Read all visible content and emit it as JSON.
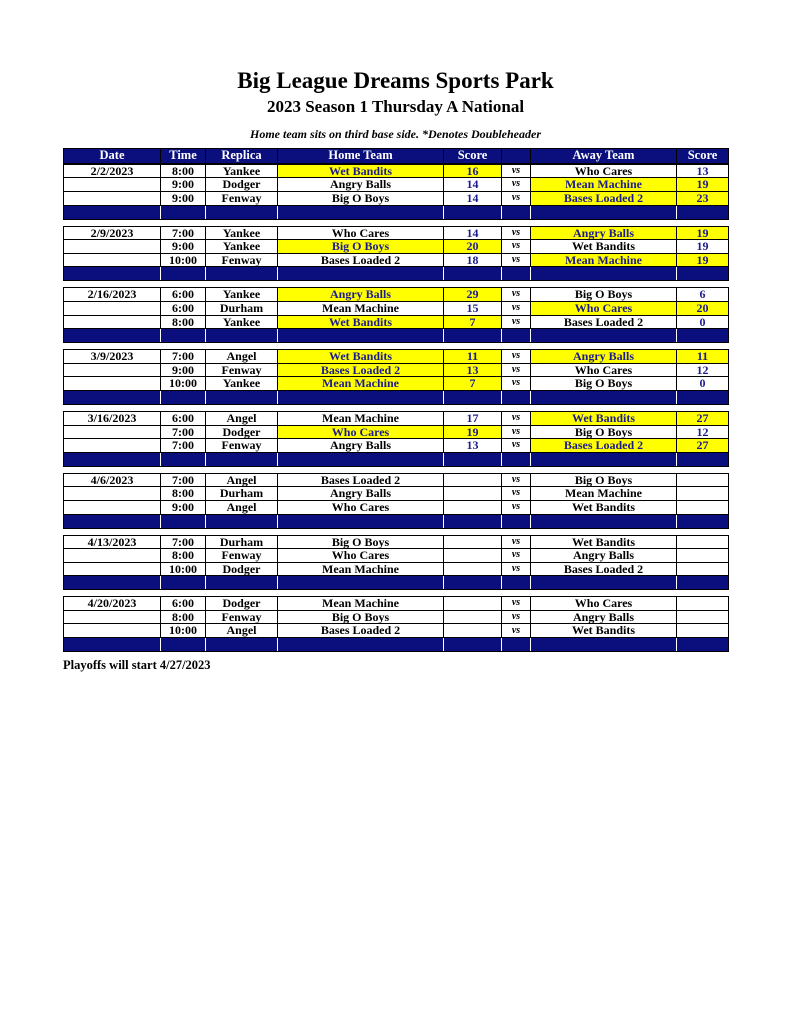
{
  "page": {
    "title": "Big League Dreams Sports Park",
    "subtitle": "2023 Season 1 Thursday A National",
    "note": "Home team sits on third base side.  *Denotes Doubleheader",
    "footer": "Playoffs will start 4/27/2023"
  },
  "colors": {
    "navy": "#0a0f7d",
    "yellow": "#ffff00",
    "score_text": "#1b1b8f",
    "header_text": "#ffffff"
  },
  "table": {
    "headers": [
      "Date",
      "Time",
      "Replica",
      "Home Team",
      "Score",
      "",
      "Away Team",
      "Score"
    ],
    "vs_label": "vs",
    "blocks": [
      {
        "date": "2/2/2023",
        "games": [
          {
            "time": "8:00",
            "replica": "Yankee",
            "home": "Wet Bandits",
            "home_score": "16",
            "away": "Who Cares",
            "away_score": "13",
            "home_hl": true,
            "away_hl": false
          },
          {
            "time": "9:00",
            "replica": "Dodger",
            "home": "Angry Balls",
            "home_score": "14",
            "away": "Mean Machine",
            "away_score": "19",
            "home_hl": false,
            "away_hl": true
          },
          {
            "time": "9:00",
            "replica": "Fenway",
            "home": "Big O Boys",
            "home_score": "14",
            "away": "Bases Loaded 2",
            "away_score": "23",
            "home_hl": false,
            "away_hl": true
          }
        ]
      },
      {
        "date": "2/9/2023",
        "games": [
          {
            "time": "7:00",
            "replica": "Yankee",
            "home": "Who Cares",
            "home_score": "14",
            "away": "Angry Balls",
            "away_score": "19",
            "home_hl": false,
            "away_hl": true
          },
          {
            "time": "9:00",
            "replica": "Yankee",
            "home": "Big O Boys",
            "home_score": "20",
            "away": "Wet Bandits",
            "away_score": "19",
            "home_hl": true,
            "away_hl": false
          },
          {
            "time": "10:00",
            "replica": "Fenway",
            "home": "Bases Loaded 2",
            "home_score": "18",
            "away": "Mean Machine",
            "away_score": "19",
            "home_hl": false,
            "away_hl": true
          }
        ]
      },
      {
        "date": "2/16/2023",
        "games": [
          {
            "time": "6:00",
            "replica": "Yankee",
            "home": "Angry Balls",
            "home_score": "29",
            "away": "Big O Boys",
            "away_score": "6",
            "home_hl": true,
            "away_hl": false
          },
          {
            "time": "6:00",
            "replica": "Durham",
            "home": "Mean Machine",
            "home_score": "15",
            "away": "Who Cares",
            "away_score": "20",
            "home_hl": false,
            "away_hl": true
          },
          {
            "time": "8:00",
            "replica": "Yankee",
            "home": "Wet Bandits",
            "home_score": "7",
            "away": "Bases Loaded 2",
            "away_score": "0",
            "home_hl": true,
            "away_hl": false
          }
        ]
      },
      {
        "date": "3/9/2023",
        "games": [
          {
            "time": "7:00",
            "replica": "Angel",
            "home": "Wet Bandits",
            "home_score": "11",
            "away": "Angry Balls",
            "away_score": "11",
            "home_hl": true,
            "away_hl": true
          },
          {
            "time": "9:00",
            "replica": "Fenway",
            "home": "Bases Loaded 2",
            "home_score": "13",
            "away": "Who Cares",
            "away_score": "12",
            "home_hl": true,
            "away_hl": false
          },
          {
            "time": "10:00",
            "replica": "Yankee",
            "home": "Mean Machine",
            "home_score": "7",
            "away": "Big O Boys",
            "away_score": "0",
            "home_hl": true,
            "away_hl": false
          }
        ]
      },
      {
        "date": "3/16/2023",
        "games": [
          {
            "time": "6:00",
            "replica": "Angel",
            "home": "Mean Machine",
            "home_score": "17",
            "away": "Wet Bandits",
            "away_score": "27",
            "home_hl": false,
            "away_hl": true
          },
          {
            "time": "7:00",
            "replica": "Dodger",
            "home": "Who Cares",
            "home_score": "19",
            "away": "Big O Boys",
            "away_score": "12",
            "home_hl": true,
            "away_hl": false
          },
          {
            "time": "7:00",
            "replica": "Fenway",
            "home": "Angry Balls",
            "home_score": "13",
            "away": "Bases Loaded 2",
            "away_score": "27",
            "home_hl": false,
            "away_hl": true
          }
        ]
      },
      {
        "date": "4/6/2023",
        "games": [
          {
            "time": "7:00",
            "replica": "Angel",
            "home": "Bases Loaded 2",
            "home_score": "",
            "away": "Big O Boys",
            "away_score": "",
            "home_hl": false,
            "away_hl": false
          },
          {
            "time": "8:00",
            "replica": "Durham",
            "home": "Angry Balls",
            "home_score": "",
            "away": "Mean Machine",
            "away_score": "",
            "home_hl": false,
            "away_hl": false
          },
          {
            "time": "9:00",
            "replica": "Angel",
            "home": "Who Cares",
            "home_score": "",
            "away": "Wet Bandits",
            "away_score": "",
            "home_hl": false,
            "away_hl": false
          }
        ]
      },
      {
        "date": "4/13/2023",
        "games": [
          {
            "time": "7:00",
            "replica": "Durham",
            "home": "Big O Boys",
            "home_score": "",
            "away": "Wet Bandits",
            "away_score": "",
            "home_hl": false,
            "away_hl": false
          },
          {
            "time": "8:00",
            "replica": "Fenway",
            "home": "Who Cares",
            "home_score": "",
            "away": "Angry Balls",
            "away_score": "",
            "home_hl": false,
            "away_hl": false
          },
          {
            "time": "10:00",
            "replica": "Dodger",
            "home": "Mean Machine",
            "home_score": "",
            "away": "Bases Loaded 2",
            "away_score": "",
            "home_hl": false,
            "away_hl": false
          }
        ]
      },
      {
        "date": "4/20/2023",
        "games": [
          {
            "time": "6:00",
            "replica": "Dodger",
            "home": "Mean Machine",
            "home_score": "",
            "away": "Who Cares",
            "away_score": "",
            "home_hl": false,
            "away_hl": false
          },
          {
            "time": "8:00",
            "replica": "Fenway",
            "home": "Big O Boys",
            "home_score": "",
            "away": "Angry Balls",
            "away_score": "",
            "home_hl": false,
            "away_hl": false
          },
          {
            "time": "10:00",
            "replica": "Angel",
            "home": "Bases Loaded 2",
            "home_score": "",
            "away": "Wet Bandits",
            "away_score": "",
            "home_hl": false,
            "away_hl": false
          }
        ]
      }
    ]
  }
}
